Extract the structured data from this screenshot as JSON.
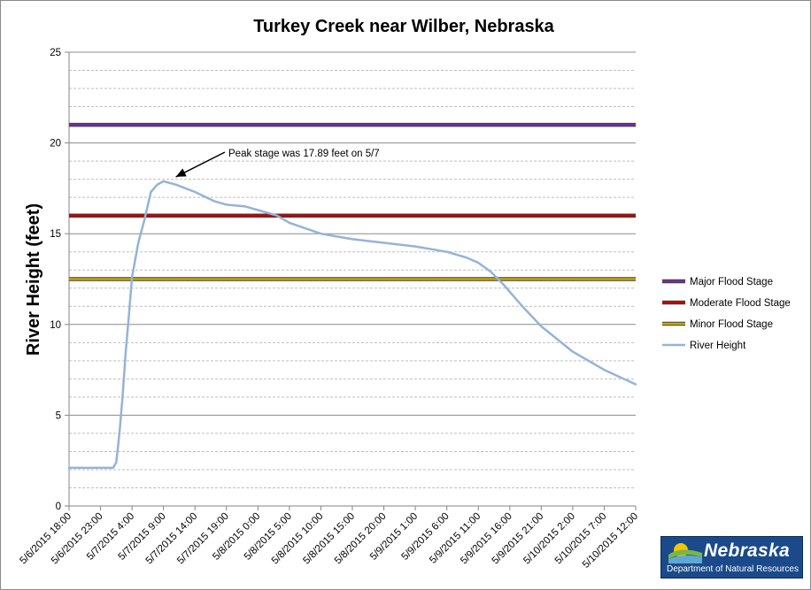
{
  "chart_data": {
    "type": "line",
    "title": "Turkey Creek near Wilber, Nebraska",
    "xlabel": "",
    "ylabel": "River Height (feet)",
    "ylim": [
      0,
      25
    ],
    "yticks": [
      "0",
      "5",
      "10",
      "15",
      "20",
      "25"
    ],
    "grid": "major solid gray, minor dashed at 1 ft",
    "x_ticks": [
      "5/6/2015 18:00",
      "5/6/2015 23:00",
      "5/7/2015 4:00",
      "5/7/2015 9:00",
      "5/7/2015 14:00",
      "5/7/2015 19:00",
      "5/8/2015 0:00",
      "5/8/2015 5:00",
      "5/8/2015 10:00",
      "5/8/2015 15:00",
      "5/8/2015 20:00",
      "5/9/2015 1:00",
      "5/9/2015 6:00",
      "5/9/2015 11:00",
      "5/9/2015 16:00",
      "5/9/2015 21:00",
      "5/10/2015 2:00",
      "5/10/2015 7:00",
      "5/10/2015 12:00"
    ],
    "legend_position": "right",
    "series": [
      {
        "name": "Major Flood Stage",
        "color": "#7030a0",
        "x": [
          "5/6/2015 18:00",
          "5/10/2015 12:00"
        ],
        "values": [
          21,
          21
        ]
      },
      {
        "name": "Moderate Flood Stage",
        "color": "#c00000",
        "x": [
          "5/6/2015 18:00",
          "5/10/2015 12:00"
        ],
        "values": [
          16,
          16
        ]
      },
      {
        "name": "Minor Flood Stage",
        "color": "#c9a800",
        "x": [
          "5/6/2015 18:00",
          "5/10/2015 12:00"
        ],
        "values": [
          12.5,
          12.5
        ]
      },
      {
        "name": "River Height",
        "color": "#95b3d7",
        "x": [
          "5/6/2015 18:00",
          "5/6/2015 23:00",
          "5/7/2015 0:00",
          "5/7/2015 0:30",
          "5/7/2015 1:00",
          "5/7/2015 1:30",
          "5/7/2015 2:00",
          "5/7/2015 2:30",
          "5/7/2015 3:00",
          "5/7/2015 3:30",
          "5/7/2015 4:00",
          "5/7/2015 5:00",
          "5/7/2015 6:00",
          "5/7/2015 7:00",
          "5/7/2015 8:00",
          "5/7/2015 9:00",
          "5/7/2015 11:00",
          "5/7/2015 14:00",
          "5/7/2015 17:00",
          "5/7/2015 19:00",
          "5/7/2015 22:00",
          "5/8/2015 0:00",
          "5/8/2015 3:00",
          "5/8/2015 5:00",
          "5/8/2015 10:00",
          "5/8/2015 15:00",
          "5/8/2015 20:00",
          "5/9/2015 1:00",
          "5/9/2015 6:00",
          "5/9/2015 9:00",
          "5/9/2015 11:00",
          "5/9/2015 13:00",
          "5/9/2015 15:00",
          "5/9/2015 16:00",
          "5/9/2015 18:00",
          "5/9/2015 21:00",
          "5/10/2015 2:00",
          "5/10/2015 7:00",
          "5/10/2015 12:00"
        ],
        "values": [
          2.1,
          2.1,
          2.1,
          2.1,
          2.1,
          2.4,
          4.0,
          6.0,
          8.5,
          10.5,
          12.6,
          14.5,
          15.8,
          17.3,
          17.7,
          17.89,
          17.7,
          17.3,
          16.8,
          16.6,
          16.5,
          16.3,
          16.0,
          15.6,
          15.0,
          14.7,
          14.5,
          14.3,
          14.0,
          13.7,
          13.4,
          12.9,
          12.2,
          11.8,
          11.0,
          9.9,
          8.5,
          7.5,
          6.7
        ]
      }
    ],
    "annotations": [
      {
        "text": "Peak stage was 17.89 feet on 5/7",
        "x": "5/7/2015 9:00",
        "y": 17.89
      }
    ]
  },
  "logo": {
    "word": "Nebraska",
    "sub": "Department of Natural Resources",
    "colors": {
      "bg": "#1b4a8a",
      "sun": "#f2c500",
      "leaf": "#7ab648",
      "water": "#5fa8d3"
    }
  }
}
